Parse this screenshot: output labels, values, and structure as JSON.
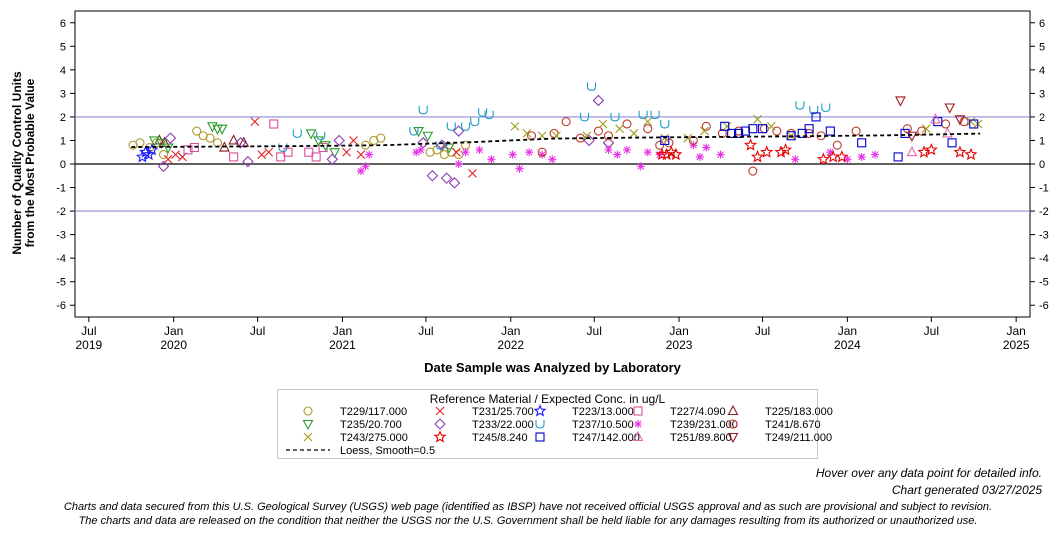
{
  "chart_data": {
    "type": "scatter",
    "ylabel_line1": "Number of Quality Control Units",
    "ylabel_line2": "from the Most Probable Value",
    "xlabel": "Date Sample was Analyzed by Laboratory",
    "xlim": [
      "2019-06-01",
      "2025-01-31"
    ],
    "ylim": [
      -6.5,
      6.5
    ],
    "yticks": [
      -6,
      -5,
      -4,
      -3,
      -2,
      -1,
      0,
      1,
      2,
      3,
      4,
      5,
      6
    ],
    "xticks": [
      {
        "date": "2019-07-01",
        "label": "Jul",
        "year": "2019"
      },
      {
        "date": "2020-01-01",
        "label": "Jan",
        "year": "2020"
      },
      {
        "date": "2020-07-01",
        "label": "Jul",
        "year": ""
      },
      {
        "date": "2021-01-01",
        "label": "Jan",
        "year": "2021"
      },
      {
        "date": "2021-07-01",
        "label": "Jul",
        "year": ""
      },
      {
        "date": "2022-01-01",
        "label": "Jan",
        "year": "2022"
      },
      {
        "date": "2022-07-01",
        "label": "Jul",
        "year": ""
      },
      {
        "date": "2023-01-01",
        "label": "Jan",
        "year": "2023"
      },
      {
        "date": "2023-07-01",
        "label": "Jul",
        "year": ""
      },
      {
        "date": "2024-01-01",
        "label": "Jan",
        "year": "2024"
      },
      {
        "date": "2024-07-01",
        "label": "Jul",
        "year": ""
      },
      {
        "date": "2025-01-01",
        "label": "Jan",
        "year": "2025"
      }
    ],
    "reference_lines": [
      {
        "y": 2,
        "color": "#8c8cd6"
      },
      {
        "y": 0,
        "color": "#000000"
      },
      {
        "y": -2,
        "color": "#8c8cd6"
      }
    ],
    "grid": false,
    "legend_position": "bottom-center",
    "legend_title": "Reference Material / Expected Conc. in ug/L",
    "series": [
      {
        "name": "T229/117.000",
        "marker": "circle",
        "color": "#b09a2b",
        "points": [
          [
            "2019-10-05",
            0.8
          ],
          [
            "2019-10-20",
            0.9
          ],
          [
            "2019-11-10",
            0.7
          ],
          [
            "2019-11-25",
            0.9
          ],
          [
            "2019-12-10",
            0.4
          ],
          [
            "2020-02-20",
            1.4
          ],
          [
            "2020-03-05",
            1.2
          ],
          [
            "2020-03-20",
            1.1
          ],
          [
            "2020-04-05",
            0.9
          ],
          [
            "2021-02-20",
            0.8
          ],
          [
            "2021-03-10",
            1.0
          ],
          [
            "2021-03-25",
            1.1
          ],
          [
            "2021-07-10",
            0.5
          ],
          [
            "2021-07-25",
            0.6
          ],
          [
            "2021-08-10",
            0.4
          ],
          [
            "2021-08-25",
            0.5
          ],
          [
            "2021-09-10",
            0.4
          ],
          [
            "2021-09-25",
            0.8
          ]
        ]
      },
      {
        "name": "T231/25.700",
        "marker": "x",
        "color": "#e32020",
        "points": [
          [
            "2019-12-20",
            0.2
          ],
          [
            "2020-01-05",
            0.4
          ],
          [
            "2020-01-20",
            0.3
          ],
          [
            "2020-06-25",
            1.8
          ],
          [
            "2020-07-10",
            0.4
          ],
          [
            "2020-07-25",
            0.5
          ],
          [
            "2021-01-10",
            0.5
          ],
          [
            "2021-01-25",
            1.0
          ],
          [
            "2021-02-10",
            0.4
          ],
          [
            "2021-08-10",
            0.8
          ],
          [
            "2021-09-05",
            0.5
          ],
          [
            "2021-10-10",
            -0.4
          ]
        ]
      },
      {
        "name": "T223/13.000",
        "marker": "star",
        "color": "#1a1aff",
        "points": [
          [
            "2019-10-25",
            0.3
          ],
          [
            "2019-11-01",
            0.5
          ],
          [
            "2019-11-08",
            0.4
          ],
          [
            "2019-11-15",
            0.6
          ]
        ]
      },
      {
        "name": "T227/4.090",
        "marker": "square",
        "color": "#d84f9a",
        "points": [
          [
            "2020-02-01",
            0.6
          ],
          [
            "2020-02-15",
            0.7
          ],
          [
            "2020-05-10",
            0.3
          ],
          [
            "2020-08-05",
            1.7
          ],
          [
            "2020-08-20",
            0.3
          ],
          [
            "2020-09-05",
            0.5
          ],
          [
            "2020-10-20",
            0.5
          ],
          [
            "2020-11-05",
            0.3
          ],
          [
            "2020-11-20",
            0.7
          ]
        ]
      },
      {
        "name": "T225/183.000",
        "marker": "triangle-up",
        "color": "#8b1f1f",
        "points": [
          [
            "2019-12-01",
            1.0
          ],
          [
            "2019-12-12",
            0.9
          ],
          [
            "2020-04-20",
            0.7
          ],
          [
            "2020-05-10",
            1.0
          ],
          [
            "2020-06-01",
            0.9
          ]
        ]
      },
      {
        "name": "T235/20.700",
        "marker": "triangle-down",
        "color": "#2f9a2f",
        "points": [
          [
            "2019-11-20",
            1.0
          ],
          [
            "2019-12-05",
            0.9
          ],
          [
            "2019-12-20",
            0.7
          ],
          [
            "2020-03-25",
            1.6
          ],
          [
            "2020-04-05",
            1.5
          ],
          [
            "2020-04-15",
            1.5
          ],
          [
            "2020-10-25",
            1.3
          ],
          [
            "2020-11-10",
            1.0
          ],
          [
            "2020-11-25",
            0.8
          ],
          [
            "2020-12-15",
            0.5
          ],
          [
            "2021-06-15",
            1.4
          ],
          [
            "2021-07-05",
            1.2
          ],
          [
            "2021-08-20",
            0.7
          ]
        ]
      },
      {
        "name": "T233/22.000",
        "marker": "diamond",
        "color": "#8c3cb3",
        "points": [
          [
            "2019-12-10",
            -0.1
          ],
          [
            "2019-12-25",
            1.1
          ],
          [
            "2020-05-25",
            0.9
          ],
          [
            "2020-06-10",
            0.1
          ],
          [
            "2020-12-10",
            0.2
          ],
          [
            "2020-12-25",
            1.0
          ],
          [
            "2021-06-25",
            0.9
          ],
          [
            "2021-07-15",
            -0.5
          ],
          [
            "2021-08-05",
            0.8
          ],
          [
            "2021-08-15",
            -0.6
          ],
          [
            "2021-09-01",
            -0.8
          ],
          [
            "2021-09-10",
            1.4
          ],
          [
            "2022-06-20",
            1.0
          ],
          [
            "2022-07-10",
            2.7
          ],
          [
            "2022-08-01",
            0.9
          ]
        ]
      },
      {
        "name": "T237/10.500",
        "marker": "cup",
        "color": "#1e9ec7",
        "points": [
          [
            "2020-08-25",
            0.7
          ],
          [
            "2020-09-25",
            1.3
          ],
          [
            "2020-11-15",
            1.2
          ],
          [
            "2021-06-05",
            1.4
          ],
          [
            "2021-06-25",
            2.3
          ],
          [
            "2021-08-01",
            0.8
          ],
          [
            "2021-08-25",
            1.6
          ],
          [
            "2021-09-25",
            1.6
          ],
          [
            "2021-10-15",
            1.8
          ],
          [
            "2021-11-01",
            2.2
          ],
          [
            "2021-11-15",
            2.1
          ],
          [
            "2022-06-10",
            2.0
          ],
          [
            "2022-06-25",
            3.3
          ],
          [
            "2022-08-15",
            2.0
          ],
          [
            "2022-10-15",
            2.1
          ],
          [
            "2022-11-10",
            2.1
          ],
          [
            "2022-12-01",
            1.7
          ],
          [
            "2023-09-20",
            2.5
          ],
          [
            "2023-10-20",
            2.3
          ],
          [
            "2023-11-15",
            2.4
          ]
        ]
      },
      {
        "name": "T239/231.000",
        "marker": "asterisk",
        "color": "#e633e6",
        "points": [
          [
            "2021-02-10",
            -0.3
          ],
          [
            "2021-02-20",
            -0.1
          ],
          [
            "2021-02-28",
            0.4
          ],
          [
            "2021-06-10",
            0.5
          ],
          [
            "2021-06-20",
            0.6
          ],
          [
            "2021-09-10",
            0.0
          ],
          [
            "2021-09-25",
            0.5
          ],
          [
            "2021-10-25",
            0.6
          ],
          [
            "2021-11-20",
            0.2
          ],
          [
            "2022-01-05",
            0.4
          ],
          [
            "2022-01-20",
            -0.2
          ],
          [
            "2022-02-10",
            0.5
          ],
          [
            "2022-03-10",
            0.4
          ],
          [
            "2022-04-01",
            0.2
          ],
          [
            "2022-08-01",
            0.6
          ],
          [
            "2022-08-20",
            0.4
          ],
          [
            "2022-09-10",
            0.6
          ],
          [
            "2022-10-10",
            -0.1
          ],
          [
            "2022-10-25",
            0.5
          ],
          [
            "2022-11-20",
            0.4
          ],
          [
            "2023-02-01",
            0.8
          ],
          [
            "2023-02-15",
            0.3
          ],
          [
            "2023-03-01",
            0.7
          ],
          [
            "2023-04-01",
            0.4
          ],
          [
            "2023-09-10",
            0.2
          ],
          [
            "2023-11-25",
            0.5
          ],
          [
            "2024-01-01",
            0.2
          ],
          [
            "2024-02-01",
            0.3
          ],
          [
            "2024-03-01",
            0.4
          ]
        ]
      },
      {
        "name": "T241/8.670",
        "marker": "circle",
        "color": "#c0392b",
        "points": [
          [
            "2022-02-15",
            1.2
          ],
          [
            "2022-03-10",
            0.5
          ],
          [
            "2022-04-05",
            1.3
          ],
          [
            "2022-05-01",
            1.8
          ],
          [
            "2022-06-01",
            1.1
          ],
          [
            "2022-07-10",
            1.4
          ],
          [
            "2022-08-01",
            1.2
          ],
          [
            "2022-09-10",
            1.7
          ],
          [
            "2022-10-25",
            1.5
          ],
          [
            "2022-11-20",
            0.8
          ],
          [
            "2022-12-10",
            0.9
          ],
          [
            "2023-02-01",
            1.0
          ],
          [
            "2023-03-01",
            1.6
          ],
          [
            "2023-04-05",
            1.3
          ],
          [
            "2023-05-10",
            1.4
          ],
          [
            "2023-06-10",
            -0.3
          ],
          [
            "2023-07-05",
            1.5
          ],
          [
            "2023-08-01",
            1.4
          ],
          [
            "2023-09-01",
            1.3
          ],
          [
            "2023-10-10",
            1.3
          ],
          [
            "2023-11-05",
            1.2
          ],
          [
            "2023-12-10",
            0.8
          ],
          [
            "2024-01-20",
            1.4
          ],
          [
            "2024-05-10",
            1.5
          ],
          [
            "2024-06-10",
            1.4
          ],
          [
            "2024-08-01",
            1.7
          ],
          [
            "2024-09-10",
            1.8
          ]
        ]
      },
      {
        "name": "T243/275.000",
        "marker": "x",
        "color": "#9c9c1c",
        "points": [
          [
            "2022-01-10",
            1.6
          ],
          [
            "2022-02-05",
            1.3
          ],
          [
            "2022-03-10",
            1.2
          ],
          [
            "2022-04-10",
            1.2
          ],
          [
            "2022-06-15",
            1.2
          ],
          [
            "2022-07-20",
            1.7
          ],
          [
            "2022-08-25",
            1.5
          ],
          [
            "2022-09-25",
            1.3
          ],
          [
            "2022-10-25",
            1.8
          ],
          [
            "2022-12-01",
            1.1
          ],
          [
            "2023-01-20",
            1.1
          ],
          [
            "2023-02-25",
            1.4
          ],
          [
            "2023-04-15",
            1.6
          ],
          [
            "2023-06-20",
            1.9
          ],
          [
            "2023-07-20",
            1.6
          ],
          [
            "2023-09-01",
            1.2
          ],
          [
            "2024-06-20",
            1.5
          ],
          [
            "2024-09-25",
            1.8
          ],
          [
            "2024-10-10",
            1.7
          ]
        ]
      },
      {
        "name": "T245/8.240",
        "marker": "star",
        "color": "#e60000",
        "points": [
          [
            "2022-11-25",
            0.4
          ],
          [
            "2022-12-05",
            0.4
          ],
          [
            "2022-12-15",
            0.5
          ],
          [
            "2022-12-25",
            0.4
          ],
          [
            "2023-06-05",
            0.8
          ],
          [
            "2023-06-20",
            0.3
          ],
          [
            "2023-07-10",
            0.5
          ],
          [
            "2023-08-10",
            0.5
          ],
          [
            "2023-08-20",
            0.6
          ],
          [
            "2023-11-10",
            0.2
          ],
          [
            "2023-12-01",
            0.3
          ],
          [
            "2023-12-20",
            0.3
          ],
          [
            "2024-06-15",
            0.5
          ],
          [
            "2024-07-01",
            0.6
          ],
          [
            "2024-09-01",
            0.5
          ],
          [
            "2024-09-25",
            0.4
          ]
        ]
      },
      {
        "name": "T247/142.000",
        "marker": "square",
        "color": "#0000cc",
        "points": [
          [
            "2022-12-01",
            1.0
          ],
          [
            "2023-04-10",
            1.6
          ],
          [
            "2023-04-25",
            1.3
          ],
          [
            "2023-05-10",
            1.3
          ],
          [
            "2023-05-25",
            1.4
          ],
          [
            "2023-06-10",
            1.5
          ],
          [
            "2023-07-01",
            1.5
          ],
          [
            "2023-09-01",
            1.2
          ],
          [
            "2023-09-25",
            1.3
          ],
          [
            "2023-10-10",
            1.5
          ],
          [
            "2023-10-25",
            2.0
          ],
          [
            "2023-11-25",
            1.4
          ],
          [
            "2024-02-01",
            0.9
          ],
          [
            "2024-04-20",
            0.3
          ],
          [
            "2024-05-05",
            1.3
          ],
          [
            "2024-07-15",
            1.8
          ],
          [
            "2024-08-15",
            0.9
          ],
          [
            "2024-10-01",
            1.7
          ]
        ]
      },
      {
        "name": "T251/89.800",
        "marker": "triangle-up",
        "color": "#e06bb0",
        "points": [
          [
            "2024-05-20",
            0.5
          ],
          [
            "2024-07-10",
            1.9
          ],
          [
            "2024-08-05",
            1.3
          ]
        ]
      },
      {
        "name": "T249/211.000",
        "marker": "triangle-down",
        "color": "#a01818",
        "points": [
          [
            "2024-04-25",
            2.7
          ],
          [
            "2024-05-20",
            1.2
          ],
          [
            "2024-08-10",
            2.4
          ],
          [
            "2024-09-01",
            1.9
          ]
        ]
      },
      {
        "name": "Loess, Smooth=0.5",
        "marker": "line",
        "color": "#000000",
        "dash": "4,3",
        "points": [
          [
            "2019-10-01",
            0.72
          ],
          [
            "2020-04-01",
            0.74
          ],
          [
            "2020-10-01",
            0.76
          ],
          [
            "2021-04-01",
            0.8
          ],
          [
            "2021-10-01",
            0.92
          ],
          [
            "2022-04-01",
            1.08
          ],
          [
            "2022-10-01",
            1.12
          ],
          [
            "2023-04-01",
            1.15
          ],
          [
            "2023-10-01",
            1.18
          ],
          [
            "2024-04-01",
            1.22
          ],
          [
            "2024-10-15",
            1.29
          ]
        ]
      }
    ]
  },
  "footer": {
    "hover_note": "Hover over any data point for detailed info.",
    "generated": "Chart generated 03/27/2025",
    "disclaimer1": "Charts and data secured from this U.S. Geological Survey (USGS) web page (identified as IBSP) have not received official USGS approval and as such are provisional and subject to revision.",
    "disclaimer2": "The charts and data are released on the condition that neither the USGS nor the U.S. Government shall be held liable for any damages resulting from its authorized or unauthorized use."
  }
}
